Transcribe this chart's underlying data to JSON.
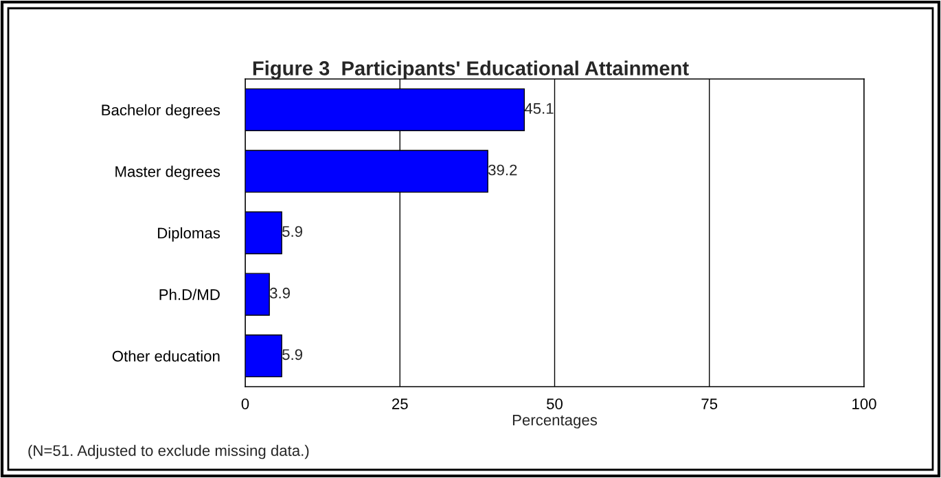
{
  "chart_data": {
    "type": "bar",
    "orientation": "horizontal",
    "title": "Figure 3  Participants' Educational Attainment",
    "categories": [
      "Bachelor degrees",
      "Master degrees",
      "Diplomas",
      "Ph.D/MD",
      "Other education"
    ],
    "values": [
      45.1,
      39.2,
      5.9,
      3.9,
      5.9
    ],
    "color": "#0000ff",
    "xlabel": "Percentages",
    "xlim": [
      0,
      100
    ],
    "xticks": [
      0,
      25,
      50,
      75,
      100
    ],
    "grid": "x",
    "data_labels": true,
    "legend": false,
    "annotations": [
      "(N=51. Adjusted to exclude missing data.)"
    ]
  }
}
